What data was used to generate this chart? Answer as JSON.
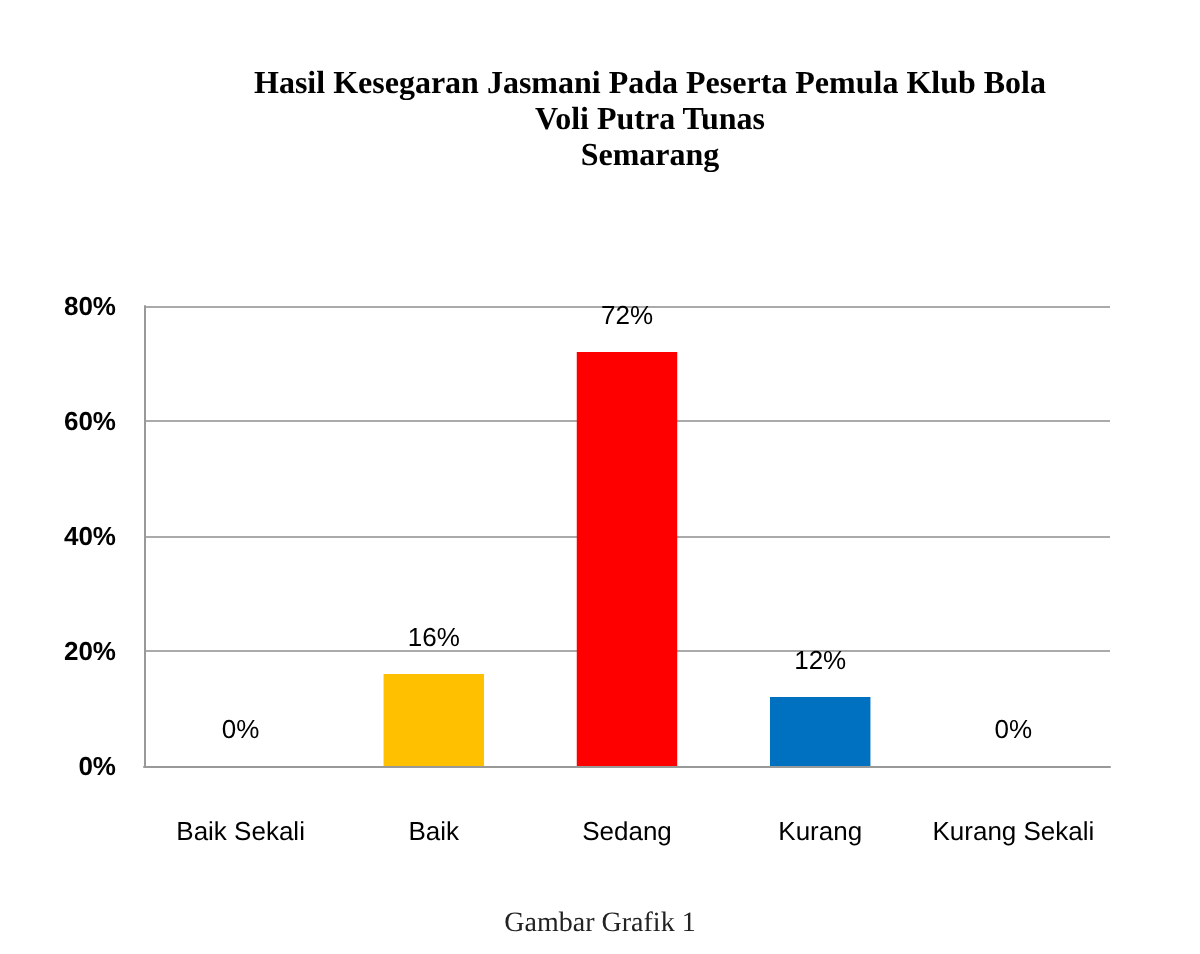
{
  "chart_data": {
    "type": "bar",
    "title": "Hasil Kesegaran Jasmani Pada Peserta Pemula Klub Bola\nVoli Putra Tunas\nSemarang",
    "categories": [
      "Baik Sekali",
      "Baik",
      "Sedang",
      "Kurang",
      "Kurang Sekali"
    ],
    "values": [
      0,
      16,
      72,
      12,
      0
    ],
    "colors": [
      "#4f6228",
      "#ffc000",
      "#ff0000",
      "#0070c0",
      "#17202e"
    ],
    "value_labels": [
      "0%",
      "16%",
      "72%",
      "12%",
      "0%"
    ],
    "ylim": [
      0,
      80
    ],
    "yticks": [
      {
        "value": 0,
        "label": "0%"
      },
      {
        "value": 20,
        "label": "20%"
      },
      {
        "value": 40,
        "label": "40%"
      },
      {
        "value": 60,
        "label": "60%"
      },
      {
        "value": 80,
        "label": "80%"
      }
    ],
    "grid": "y",
    "annotations": [
      "Gambar Grafik 1"
    ]
  }
}
